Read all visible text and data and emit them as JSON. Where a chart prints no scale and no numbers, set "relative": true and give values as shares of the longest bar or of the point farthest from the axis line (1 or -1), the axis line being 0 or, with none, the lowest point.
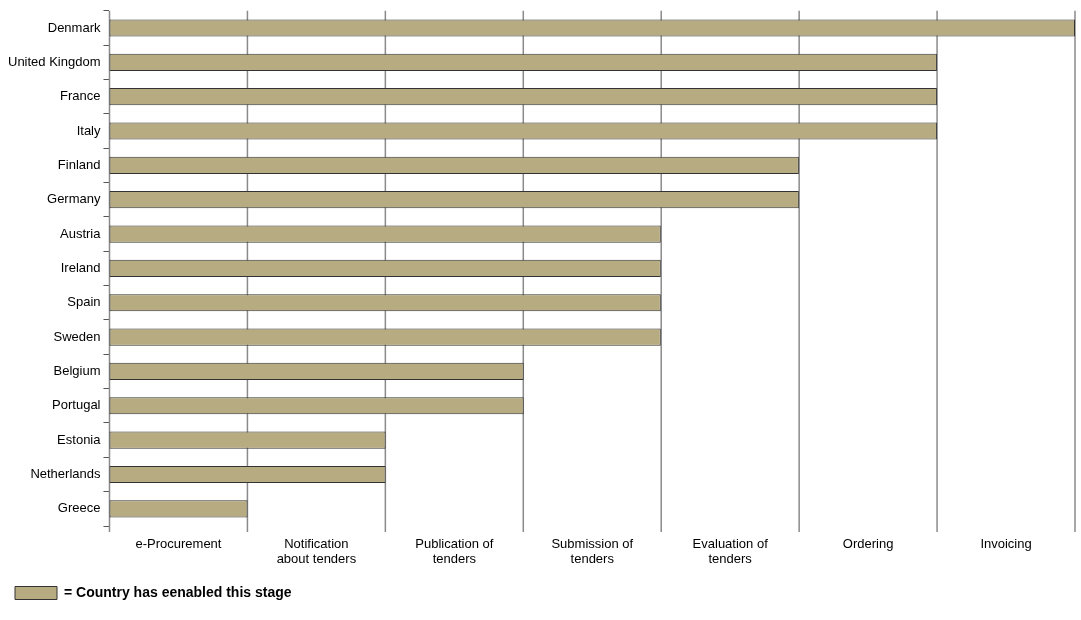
{
  "chart_data": {
    "type": "bar",
    "orientation": "horizontal",
    "relative": true,
    "categories": [
      "Denmark",
      "United Kingdom",
      "France",
      "Italy",
      "Finland",
      "Germany",
      "Austria",
      "Ireland",
      "Spain",
      "Sweden",
      "Belgium",
      "Portugal",
      "Estonia",
      "Netherlands",
      "Greece"
    ],
    "series": [
      {
        "name": "= Country has eenabled this stage",
        "color": "#b7ab81",
        "values": [
          1,
          0.857,
          0.857,
          0.857,
          0.714,
          0.714,
          0.571,
          0.571,
          0.571,
          0.571,
          0.429,
          0.429,
          0.286,
          0.286,
          0.143
        ]
      }
    ],
    "annotations": [
      "e-Procurement",
      "Notification about tenders",
      "Publication of tenders",
      "Submission of tenders",
      "Evaluation of tenders",
      "Ordering",
      "Invoicing"
    ],
    "grid": "x",
    "legend": "bottom left"
  }
}
